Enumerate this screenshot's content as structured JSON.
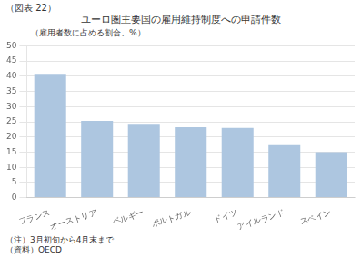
{
  "chart_data": {
    "type": "bar",
    "title": "ユーロ圏主要国の雇用維持制度への申請件数",
    "subtitle": "（図表 22）",
    "ylabel": "（雇用者数に占める割合、%）",
    "annotations": [
      "（注）3月初旬から4月末まで",
      "（資料）OECD"
    ],
    "categories": [
      "フランス",
      "オーストリア",
      "ベルギー",
      "ポルトガル",
      "ドイツ",
      "アイルランド",
      "スペイン"
    ],
    "values": [
      40.5,
      25.3,
      24.0,
      23.2,
      23.0,
      17.3,
      15.0
    ],
    "color": "#adc6e0",
    "ylim": [
      0,
      50
    ],
    "yticks": [
      0,
      5,
      10,
      15,
      20,
      25,
      30,
      35,
      40,
      45,
      50
    ],
    "grid": true
  }
}
